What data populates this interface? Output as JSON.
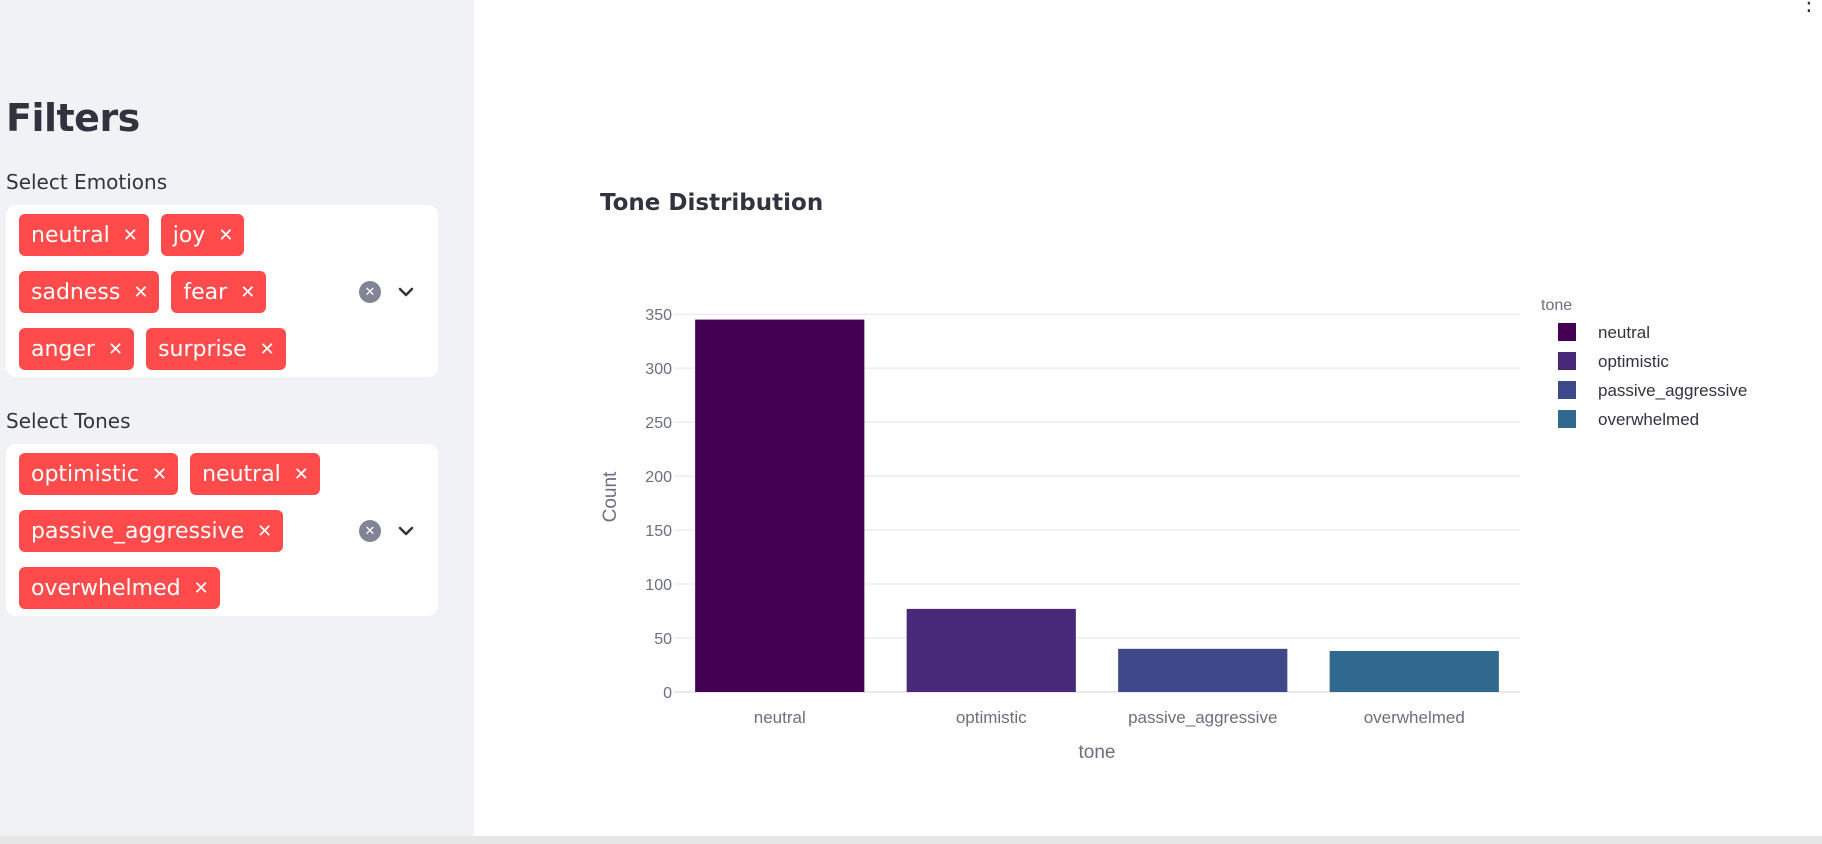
{
  "sidebar": {
    "title": "Filters",
    "emotions": {
      "label": "Select Emotions",
      "tags": [
        "neutral",
        "joy",
        "sadness",
        "fear",
        "anger",
        "surprise"
      ]
    },
    "tones": {
      "label": "Select Tones",
      "tags": [
        "optimistic",
        "neutral",
        "passive_aggressive",
        "overwhelmed"
      ]
    },
    "tag_remove_glyph": "✕",
    "clear_glyph": "✕"
  },
  "chart": {
    "title": "Tone Distribution"
  },
  "chart_data": {
    "type": "bar",
    "title": "Tone Distribution",
    "xlabel": "tone",
    "ylabel": "Count",
    "categories": [
      "neutral",
      "optimistic",
      "passive_aggressive",
      "overwhelmed"
    ],
    "values": [
      345,
      77,
      40,
      38
    ],
    "ylim": [
      0,
      365
    ],
    "yticks": [
      0,
      50,
      100,
      150,
      200,
      250,
      300,
      350
    ],
    "colors": [
      "#440154",
      "#482878",
      "#3e4989",
      "#31688e"
    ],
    "legend": {
      "title": "tone",
      "position": "top-right",
      "entries": [
        "neutral",
        "optimistic",
        "passive_aggressive",
        "overwhelmed"
      ]
    },
    "grid": true
  },
  "colors": {
    "sidebar_bg": "#f0f2f6",
    "tag_bg": "#ff4b4b",
    "text": "#31333f"
  }
}
